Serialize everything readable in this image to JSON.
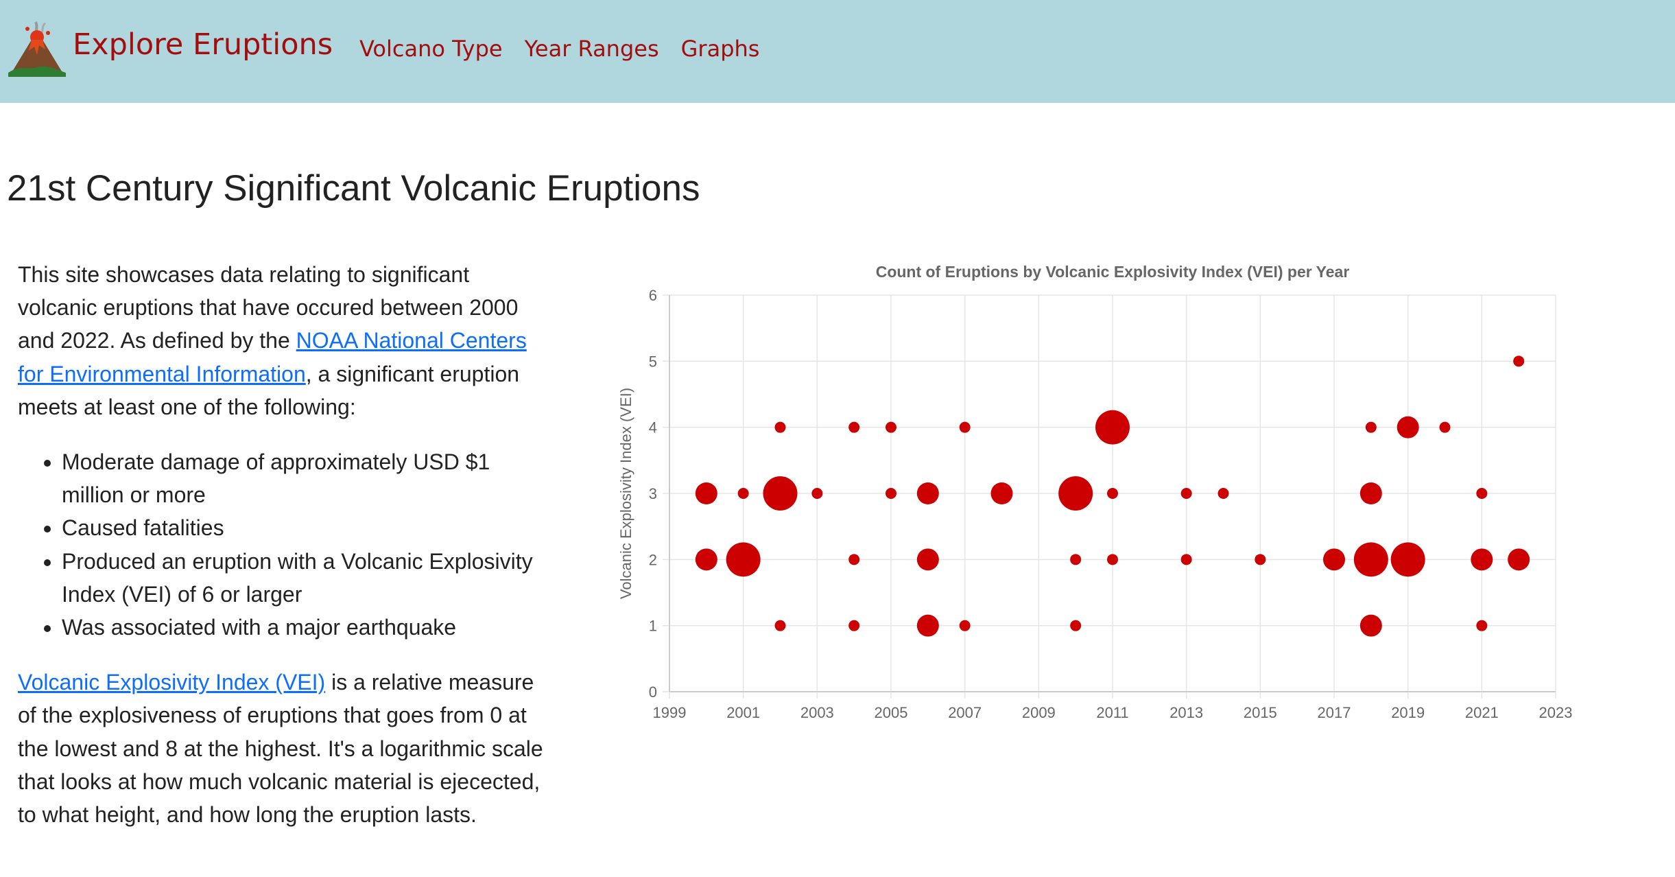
{
  "nav": {
    "brand": "Explore Eruptions",
    "links": [
      "Volcano Type",
      "Year Ranges",
      "Graphs"
    ],
    "logo_icon": "erupting-volcano-icon"
  },
  "page": {
    "title": "21st Century Significant Volcanic Eruptions"
  },
  "intro": {
    "p1_before": "This site showcases data relating to significant volcanic eruptions that have occured between 2000 and 2022. As defined by the ",
    "p1_link": "NOAA National Centers for Environmental Information",
    "p1_after": ", a significant eruption meets at least one of the following:",
    "criteria": [
      "Moderate damage of approximately USD $1 million or more",
      "Caused fatalities",
      "Produced an eruption with a Volcanic Explosivity Index (VEI) of 6 or larger",
      "Was associated with a major earthquake"
    ],
    "p2_link": "Volcanic Explosivity Index (VEI)",
    "p2_after": " is a relative measure of the explosiveness of eruptions that goes from 0 at the lowest and 8 at the highest. It's a logarithmic scale that looks at how much volcanic material is ejecected, to what height, and how long the eruption lasts."
  },
  "chart_data": {
    "type": "scatter",
    "title": "Count of Eruptions by Volcanic Explosivity Index (VEI) per Year",
    "xlabel": "",
    "ylabel": "Volcanic Explosivity Index (VEI)",
    "xlim": [
      1999,
      2023
    ],
    "ylim": [
      0,
      6
    ],
    "xticks": [
      1999,
      2001,
      2003,
      2005,
      2007,
      2009,
      2011,
      2013,
      2015,
      2017,
      2019,
      2021,
      2023
    ],
    "yticks": [
      0,
      1,
      2,
      3,
      4,
      5,
      6
    ],
    "grid": true,
    "legend": "none",
    "point_color": "#cc0000",
    "points": [
      {
        "x": 2000,
        "y": 3,
        "count": 2
      },
      {
        "x": 2000,
        "y": 2,
        "count": 2
      },
      {
        "x": 2001,
        "y": 3,
        "count": 1
      },
      {
        "x": 2001,
        "y": 2,
        "count": 3
      },
      {
        "x": 2002,
        "y": 4,
        "count": 1
      },
      {
        "x": 2002,
        "y": 3,
        "count": 3
      },
      {
        "x": 2002,
        "y": 1,
        "count": 1
      },
      {
        "x": 2003,
        "y": 3,
        "count": 1
      },
      {
        "x": 2004,
        "y": 4,
        "count": 1
      },
      {
        "x": 2004,
        "y": 2,
        "count": 1
      },
      {
        "x": 2004,
        "y": 1,
        "count": 1
      },
      {
        "x": 2005,
        "y": 4,
        "count": 1
      },
      {
        "x": 2005,
        "y": 3,
        "count": 1
      },
      {
        "x": 2006,
        "y": 3,
        "count": 2
      },
      {
        "x": 2006,
        "y": 2,
        "count": 2
      },
      {
        "x": 2006,
        "y": 1,
        "count": 2
      },
      {
        "x": 2007,
        "y": 4,
        "count": 1
      },
      {
        "x": 2007,
        "y": 1,
        "count": 1
      },
      {
        "x": 2008,
        "y": 3,
        "count": 2
      },
      {
        "x": 2010,
        "y": 3,
        "count": 3
      },
      {
        "x": 2010,
        "y": 2,
        "count": 1
      },
      {
        "x": 2010,
        "y": 1,
        "count": 1
      },
      {
        "x": 2011,
        "y": 4,
        "count": 3
      },
      {
        "x": 2011,
        "y": 3,
        "count": 1
      },
      {
        "x": 2011,
        "y": 2,
        "count": 1
      },
      {
        "x": 2013,
        "y": 3,
        "count": 1
      },
      {
        "x": 2013,
        "y": 2,
        "count": 1
      },
      {
        "x": 2014,
        "y": 3,
        "count": 1
      },
      {
        "x": 2015,
        "y": 2,
        "count": 1
      },
      {
        "x": 2017,
        "y": 2,
        "count": 2
      },
      {
        "x": 2018,
        "y": 4,
        "count": 1
      },
      {
        "x": 2018,
        "y": 3,
        "count": 2
      },
      {
        "x": 2018,
        "y": 2,
        "count": 3
      },
      {
        "x": 2018,
        "y": 1,
        "count": 2
      },
      {
        "x": 2019,
        "y": 4,
        "count": 2
      },
      {
        "x": 2019,
        "y": 2,
        "count": 3
      },
      {
        "x": 2020,
        "y": 4,
        "count": 1
      },
      {
        "x": 2021,
        "y": 3,
        "count": 1
      },
      {
        "x": 2021,
        "y": 2,
        "count": 2
      },
      {
        "x": 2021,
        "y": 1,
        "count": 1
      },
      {
        "x": 2022,
        "y": 5,
        "count": 1
      },
      {
        "x": 2022,
        "y": 2,
        "count": 2
      }
    ]
  }
}
